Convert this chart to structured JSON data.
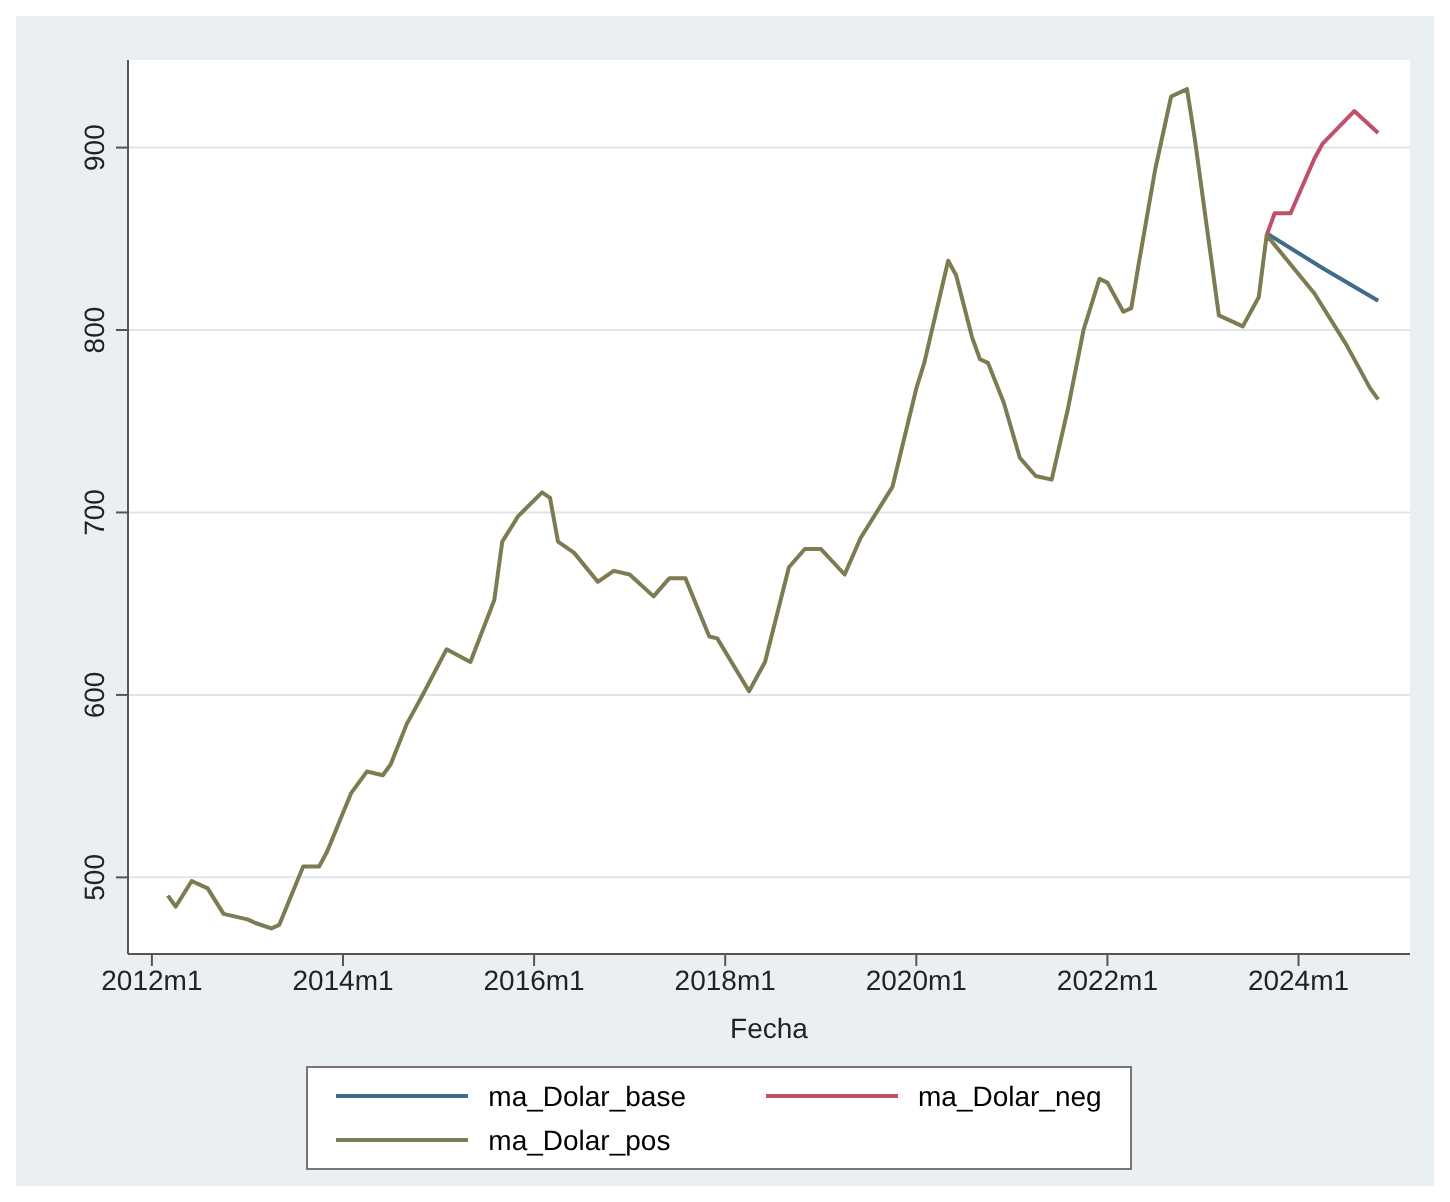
{
  "chart_data": {
    "type": "line",
    "xlabel": "Fecha",
    "xlim": [
      "2011-10",
      "2025-03"
    ],
    "ylim": [
      458,
      948
    ],
    "xticks": [
      {
        "value": "2012-01",
        "label": "2012m1"
      },
      {
        "value": "2014-01",
        "label": "2014m1"
      },
      {
        "value": "2016-01",
        "label": "2016m1"
      },
      {
        "value": "2018-01",
        "label": "2018m1"
      },
      {
        "value": "2020-01",
        "label": "2020m1"
      },
      {
        "value": "2022-01",
        "label": "2022m1"
      },
      {
        "value": "2024-01",
        "label": "2024m1"
      }
    ],
    "yticks": [
      500,
      600,
      700,
      800,
      900
    ],
    "grid": "y",
    "legend": "bottom",
    "marker": "none",
    "line_style": "solid",
    "series": [
      {
        "name": "ma_Dolar_base",
        "color": "#3e6c8a",
        "x": [
          "2023-09",
          "2024-04",
          "2024-11"
        ],
        "values": [
          853,
          834,
          816
        ]
      },
      {
        "name": "ma_Dolar_neg",
        "color": "#c0506a",
        "x": [
          "2023-09",
          "2023-10",
          "2023-12",
          "2024-03",
          "2024-04",
          "2024-08",
          "2024-11"
        ],
        "values": [
          852,
          864,
          864,
          894,
          902,
          920,
          908
        ]
      },
      {
        "name": "ma_Dolar_pos",
        "color": "#7d7b52",
        "x": [
          "2012-03",
          "2012-04",
          "2012-06",
          "2012-08",
          "2012-10",
          "2013-01",
          "2013-02",
          "2013-04",
          "2013-05",
          "2013-08",
          "2013-10",
          "2013-11",
          "2014-02",
          "2014-04",
          "2014-06",
          "2014-07",
          "2014-09",
          "2014-11",
          "2015-02",
          "2015-05",
          "2015-08",
          "2015-09",
          "2015-11",
          "2016-02",
          "2016-03",
          "2016-04",
          "2016-06",
          "2016-09",
          "2016-11",
          "2017-01",
          "2017-04",
          "2017-06",
          "2017-08",
          "2017-11",
          "2017-12",
          "2018-04",
          "2018-06",
          "2018-09",
          "2018-11",
          "2019-01",
          "2019-04",
          "2019-06",
          "2019-10",
          "2020-01",
          "2020-02",
          "2020-05",
          "2020-06",
          "2020-08",
          "2020-09",
          "2020-10",
          "2020-12",
          "2021-02",
          "2021-04",
          "2021-06",
          "2021-08",
          "2021-10",
          "2021-12",
          "2022-01",
          "2022-03",
          "2022-04",
          "2022-05",
          "2022-07",
          "2022-09",
          "2022-11",
          "2022-12",
          "2023-02",
          "2023-03",
          "2023-06",
          "2023-08",
          "2023-09",
          "2024-03",
          "2024-07",
          "2024-10",
          "2024-11"
        ],
        "values": [
          490,
          484,
          498,
          494,
          480,
          477,
          475,
          472,
          474,
          506,
          506,
          514,
          546,
          558,
          556,
          562,
          584,
          600,
          625,
          618,
          652,
          684,
          698,
          711,
          708,
          684,
          678,
          662,
          668,
          666,
          654,
          664,
          664,
          632,
          631,
          602,
          618,
          670,
          680,
          680,
          666,
          686,
          714,
          768,
          782,
          838,
          830,
          796,
          784,
          782,
          760,
          730,
          720,
          718,
          756,
          800,
          828,
          826,
          810,
          812,
          838,
          888,
          928,
          932,
          904,
          840,
          808,
          802,
          818,
          852,
          820,
          792,
          768,
          762
        ]
      }
    ]
  }
}
